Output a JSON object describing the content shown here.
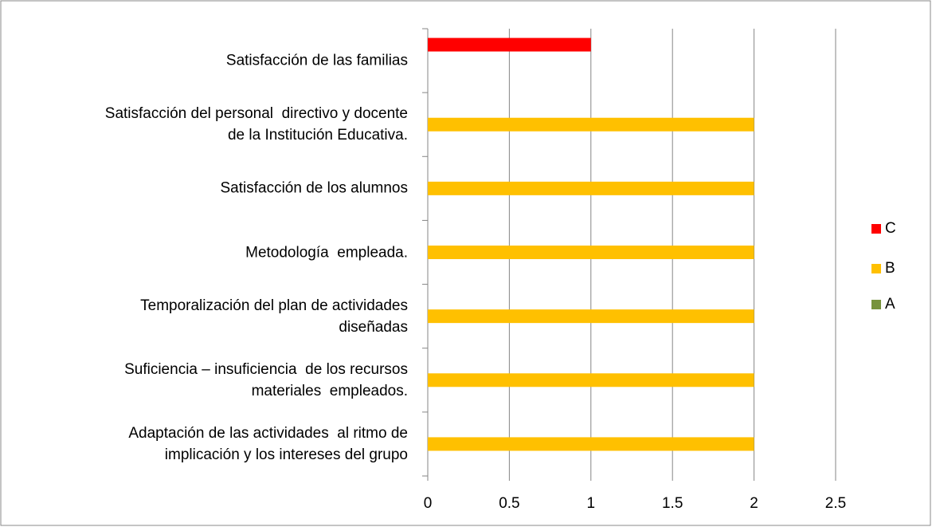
{
  "chart_data": {
    "type": "bar",
    "orientation": "horizontal",
    "categories": [
      "Adaptación de las actividades  al ritmo de\nimplicación y los intereses del grupo",
      "Suficiencia – insuficiencia  de los recursos\nmateriales  empleados.",
      "Temporalización del plan de actividades\ndiseñadas",
      "Metodología  empleada.",
      "Satisfacción de los alumnos",
      "Satisfacción del personal  directivo y docente\nde la Institución Educativa.",
      "Satisfacción de las familias"
    ],
    "series": [
      {
        "name": "A",
        "color": "#77933c",
        "values": [
          0,
          0,
          0,
          0,
          0,
          0,
          0
        ]
      },
      {
        "name": "B",
        "color": "#ffc000",
        "values": [
          2,
          2,
          2,
          2,
          2,
          2,
          0
        ]
      },
      {
        "name": "C",
        "color": "#ff0000",
        "values": [
          0,
          0,
          0,
          0,
          0,
          0,
          1
        ]
      }
    ],
    "xlim": [
      0,
      2.5
    ],
    "xticks": [
      0,
      0.5,
      1,
      1.5,
      2,
      2.5
    ],
    "grid": true,
    "legend": "right"
  }
}
